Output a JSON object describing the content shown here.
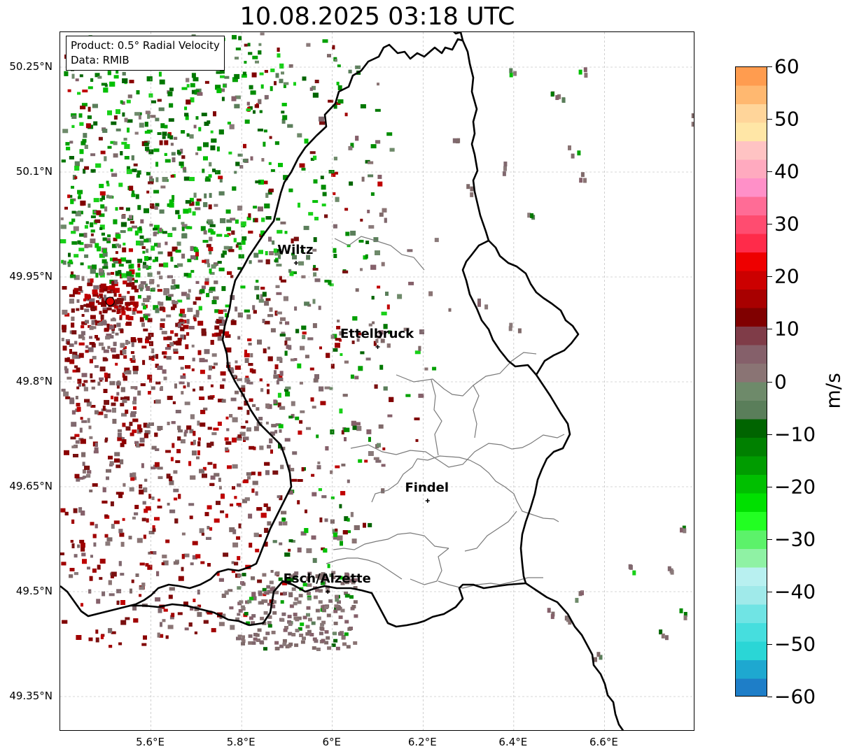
{
  "title": "10.08.2025 03:18 UTC",
  "info": {
    "product": "Product: 0.5° Radial Velocity",
    "data": "Data: RMIB"
  },
  "axes": {
    "lat_ticks": [
      "50.25°N",
      "50.1°N",
      "49.95°N",
      "49.8°N",
      "49.65°N",
      "49.5°N",
      "49.35°N"
    ],
    "lon_ticks": [
      "5.6°E",
      "5.8°E",
      "6°E",
      "6.2°E",
      "6.4°E",
      "6.6°E"
    ]
  },
  "cities": [
    {
      "name": "Wiltz",
      "lon": 5.92,
      "lat": 49.97
    },
    {
      "name": "Ettelbruck",
      "lon": 6.1,
      "lat": 49.85
    },
    {
      "name": "Findel",
      "lon": 6.21,
      "lat": 49.63
    },
    {
      "name": "Esch/Alzette",
      "lon": 5.99,
      "lat": 49.5
    }
  ],
  "radar_site": {
    "lon": 5.51,
    "lat": 49.915
  },
  "colorbar": {
    "unit": "m/s",
    "min": -60,
    "max": 60,
    "tick_labels": [
      "60",
      "50",
      "40",
      "30",
      "20",
      "10",
      "0",
      "−10",
      "−20",
      "−30",
      "−40",
      "−50",
      "−60"
    ],
    "colors_top_to_bottom": [
      "#ff9c4f",
      "#ffb870",
      "#ffd59a",
      "#ffe6a6",
      "#ffc3c3",
      "#ffaabf",
      "#ff90c8",
      "#ff6c96",
      "#ff4c70",
      "#ff2b4a",
      "#ee0000",
      "#cc0000",
      "#a80000",
      "#800000",
      "#7f3c48",
      "#85606a",
      "#8a7474",
      "#6e8a6a",
      "#5a7e5a",
      "#006400",
      "#008000",
      "#009c00",
      "#00bf00",
      "#00e000",
      "#22ff22",
      "#5cf26a",
      "#8ff2a4",
      "#b8f0f0",
      "#a0eaea",
      "#70e4e4",
      "#46dede",
      "#2ad6d6",
      "#1ea8d0",
      "#1e7ec8"
    ]
  }
}
